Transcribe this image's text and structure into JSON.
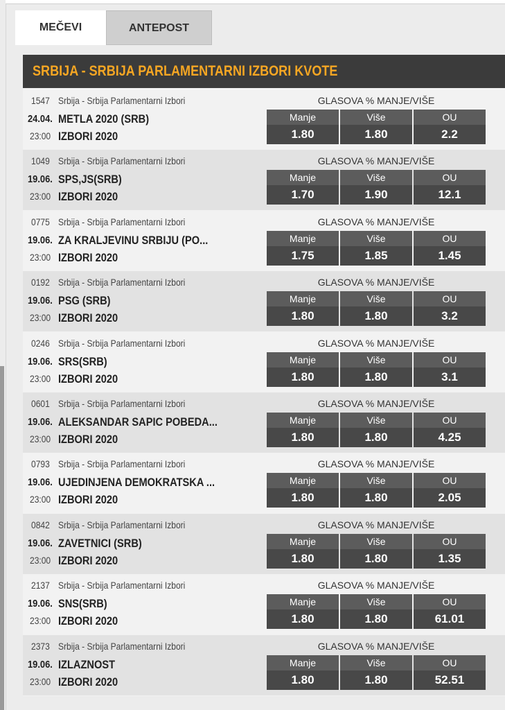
{
  "tabs": [
    "MEČEVI",
    "ANTEPOST"
  ],
  "header": {
    "title": "SRBIJA - SRBIJA PARLAMENTARNI IZBORI KVOTE"
  },
  "rows": [
    {
      "id": "1547",
      "league": "Srbija - Srbija Parlamentarni Izbori",
      "date": "24.04.",
      "time": "23:00",
      "name": "METLA 2020 (SRB)",
      "event": "IZBORI 2020",
      "market": "GLASOVA % MANJE/VIŠE",
      "odds": [
        {
          "label": "Manje",
          "value": "1.80"
        },
        {
          "label": "Više",
          "value": "1.80"
        },
        {
          "label": "OU",
          "value": "2.2"
        }
      ]
    },
    {
      "id": "1049",
      "league": "Srbija - Srbija Parlamentarni Izbori",
      "date": "19.06.",
      "time": "23:00",
      "name": "SPS,JS(SRB)",
      "event": "IZBORI 2020",
      "market": "GLASOVA % MANJE/VIŠE",
      "odds": [
        {
          "label": "Manje",
          "value": "1.70"
        },
        {
          "label": "Više",
          "value": "1.90"
        },
        {
          "label": "OU",
          "value": "12.1"
        }
      ]
    },
    {
      "id": "0775",
      "league": "Srbija - Srbija Parlamentarni Izbori",
      "date": "19.06.",
      "time": "23:00",
      "name": "ZA KRALJEVINU SRBIJU (PO...",
      "event": "IZBORI 2020",
      "market": "GLASOVA % MANJE/VIŠE",
      "odds": [
        {
          "label": "Manje",
          "value": "1.75"
        },
        {
          "label": "Više",
          "value": "1.85"
        },
        {
          "label": "OU",
          "value": "1.45"
        }
      ]
    },
    {
      "id": "0192",
      "league": "Srbija - Srbija Parlamentarni Izbori",
      "date": "19.06.",
      "time": "23:00",
      "name": "PSG (SRB)",
      "event": "IZBORI 2020",
      "market": "GLASOVA % MANJE/VIŠE",
      "odds": [
        {
          "label": "Manje",
          "value": "1.80"
        },
        {
          "label": "Više",
          "value": "1.80"
        },
        {
          "label": "OU",
          "value": "3.2"
        }
      ]
    },
    {
      "id": "0246",
      "league": "Srbija - Srbija Parlamentarni Izbori",
      "date": "19.06.",
      "time": "23:00",
      "name": "SRS(SRB)",
      "event": "IZBORI 2020",
      "market": "GLASOVA % MANJE/VIŠE",
      "odds": [
        {
          "label": "Manje",
          "value": "1.80"
        },
        {
          "label": "Više",
          "value": "1.80"
        },
        {
          "label": "OU",
          "value": "3.1"
        }
      ]
    },
    {
      "id": "0601",
      "league": "Srbija - Srbija Parlamentarni Izbori",
      "date": "19.06.",
      "time": "23:00",
      "name": "ALEKSANDAR SAPIC POBEDA...",
      "event": "IZBORI 2020",
      "market": "GLASOVA % MANJE/VIŠE",
      "odds": [
        {
          "label": "Manje",
          "value": "1.80"
        },
        {
          "label": "Više",
          "value": "1.80"
        },
        {
          "label": "OU",
          "value": "4.25"
        }
      ]
    },
    {
      "id": "0793",
      "league": "Srbija - Srbija Parlamentarni Izbori",
      "date": "19.06.",
      "time": "23:00",
      "name": "UJEDINJENA DEMOKRATSKA ...",
      "event": "IZBORI 2020",
      "market": "GLASOVA % MANJE/VIŠE",
      "odds": [
        {
          "label": "Manje",
          "value": "1.80"
        },
        {
          "label": "Više",
          "value": "1.80"
        },
        {
          "label": "OU",
          "value": "2.05"
        }
      ]
    },
    {
      "id": "0842",
      "league": "Srbija - Srbija Parlamentarni Izbori",
      "date": "19.06.",
      "time": "23:00",
      "name": "ZAVETNICI (SRB)",
      "event": "IZBORI 2020",
      "market": "GLASOVA % MANJE/VIŠE",
      "odds": [
        {
          "label": "Manje",
          "value": "1.80"
        },
        {
          "label": "Više",
          "value": "1.80"
        },
        {
          "label": "OU",
          "value": "1.35"
        }
      ]
    },
    {
      "id": "2137",
      "league": "Srbija - Srbija Parlamentarni Izbori",
      "date": "19.06.",
      "time": "23:00",
      "name": "SNS(SRB)",
      "event": "IZBORI 2020",
      "market": "GLASOVA % MANJE/VIŠE",
      "odds": [
        {
          "label": "Manje",
          "value": "1.80"
        },
        {
          "label": "Više",
          "value": "1.80"
        },
        {
          "label": "OU",
          "value": "61.01"
        }
      ]
    },
    {
      "id": "2373",
      "league": "Srbija - Srbija Parlamentarni Izbori",
      "date": "19.06.",
      "time": "23:00",
      "name": "IZLAZNOST",
      "event": "IZBORI 2020",
      "market": "GLASOVA % MANJE/VIŠE",
      "odds": [
        {
          "label": "Manje",
          "value": "1.80"
        },
        {
          "label": "Više",
          "value": "1.80"
        },
        {
          "label": "OU",
          "value": "52.51"
        }
      ]
    }
  ]
}
